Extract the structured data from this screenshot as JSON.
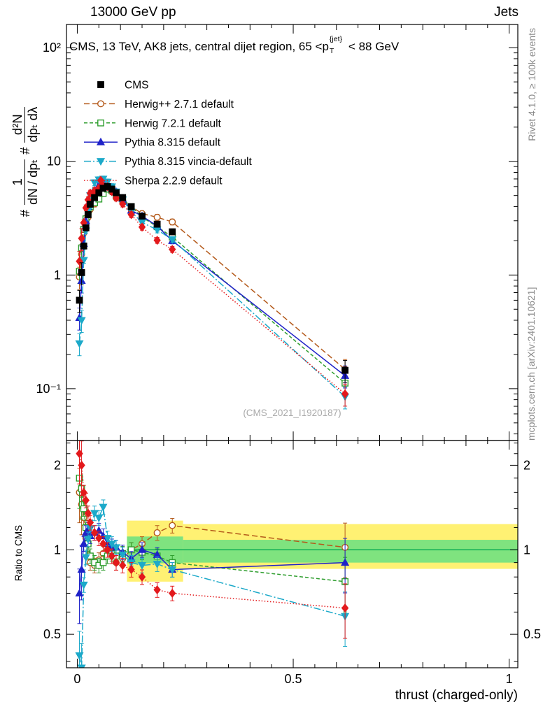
{
  "header": {
    "left": "13000 GeV pp",
    "right": "Jets"
  },
  "plot_title": {
    "pre": "CMS, 13 TeV, AK8 jets, central dijet region, 65 <p",
    "sup": "{jet}",
    "sub": "T",
    "post": "< 88 GeV"
  },
  "watermark": "(CMS_2021_I1920187)",
  "side_notes": {
    "top_right": "Rivet 4.1.0, ≥ 100k events",
    "bottom_right": "mcplots.cern.ch [arXiv:2401.10621]"
  },
  "axes": {
    "xlabel": "thrust (charged-only)",
    "ylabel_ratio": "Ratio to CMS",
    "ylabel_main": {
      "hash1": "#",
      "frac1_num": "1",
      "frac1_den": "dN / dpₜ",
      "hash2": "#",
      "frac2_num": "d²N",
      "frac2_den": "dpₜ dλ"
    },
    "x_ticks": [
      {
        "v": 0,
        "label": "0"
      },
      {
        "v": 0.5,
        "label": "0.5"
      },
      {
        "v": 1,
        "label": "1"
      }
    ],
    "y_ticks_main": [
      {
        "v": 100,
        "label": "10²"
      },
      {
        "v": 10,
        "label": "10"
      },
      {
        "v": 1,
        "label": "1"
      },
      {
        "v": 0.1,
        "label": "10⁻¹"
      }
    ],
    "y_ticks_ratio": [
      {
        "v": 2,
        "label": "2"
      },
      {
        "v": 1,
        "label": "1"
      },
      {
        "v": 0.5,
        "label": "0.5"
      }
    ]
  },
  "chart_data": {
    "type": "line",
    "title": "CMS, 13 TeV, AK8 jets, central dijet region, 65 < pT{jet} < 88 GeV",
    "xlabel": "thrust (charged-only)",
    "ylabel": "# 1/(dN/dpT) d²N/(dpT dλ)",
    "yscale": "log",
    "xlim": [
      -0.025,
      1.02
    ],
    "ylim_main": [
      0.035,
      160
    ],
    "ylim_ratio": [
      0.38,
      2.45
    ],
    "grid": false,
    "legend_position": "top-left-inside",
    "x": [
      0.005,
      0.01,
      0.015,
      0.02,
      0.025,
      0.03,
      0.04,
      0.05,
      0.06,
      0.07,
      0.08,
      0.09,
      0.105,
      0.125,
      0.15,
      0.185,
      0.22,
      0.62
    ],
    "series": [
      {
        "id": "cms",
        "name": "CMS",
        "color": "#000000",
        "marker": "square",
        "open": false,
        "line": "none",
        "values": [
          0.6,
          1.05,
          1.8,
          2.6,
          3.4,
          4.2,
          4.8,
          5.3,
          5.8,
          6.0,
          5.7,
          5.3,
          4.8,
          4.0,
          3.3,
          2.8,
          2.4,
          0.145
        ],
        "ratio": null
      },
      {
        "id": "herwigpp",
        "name": "Herwig++ 2.7.1 default",
        "color": "#b45a1b",
        "marker": "circle",
        "open": true,
        "line": "dashed",
        "values": [
          0.96,
          1.52,
          2.34,
          2.86,
          3.23,
          3.78,
          4.22,
          4.88,
          5.63,
          6.0,
          5.42,
          4.77,
          4.46,
          4.0,
          3.47,
          3.22,
          2.93,
          0.148
        ],
        "ratio": [
          1.6,
          1.45,
          1.3,
          1.1,
          0.95,
          0.9,
          0.88,
          0.92,
          0.97,
          1.0,
          0.95,
          0.9,
          0.93,
          1.0,
          1.05,
          1.15,
          1.22,
          1.02
        ]
      },
      {
        "id": "herwig7",
        "name": "Herwig 7.2.1 default",
        "color": "#2f9e2f",
        "marker": "square",
        "open": true,
        "line": "dashed2",
        "values": [
          1.08,
          1.73,
          2.52,
          3.12,
          3.57,
          3.99,
          4.32,
          4.66,
          5.22,
          5.7,
          5.53,
          5.04,
          4.66,
          4.0,
          3.23,
          2.66,
          2.16,
          0.112
        ],
        "ratio": [
          1.8,
          1.65,
          1.4,
          1.2,
          1.05,
          0.95,
          0.9,
          0.88,
          0.9,
          0.95,
          0.97,
          0.95,
          0.97,
          1.0,
          0.98,
          0.95,
          0.9,
          0.77
        ]
      },
      {
        "id": "pythia",
        "name": "Pythia 8.315 default",
        "color": "#1f22c8",
        "marker": "triangle-up",
        "open": false,
        "line": "solid",
        "values": [
          0.42,
          0.89,
          1.89,
          2.99,
          4.0,
          4.7,
          5.5,
          6.2,
          6.5,
          6.3,
          5.9,
          5.4,
          4.7,
          3.7,
          3.3,
          2.7,
          2.0,
          0.13
        ],
        "ratio": [
          0.7,
          0.85,
          1.05,
          1.15,
          1.18,
          1.12,
          1.15,
          1.17,
          1.12,
          1.05,
          1.03,
          1.02,
          0.98,
          0.93,
          1.0,
          0.96,
          0.85,
          0.9
        ]
      },
      {
        "id": "vincia",
        "name": "Pythia 8.315 vincia-default",
        "color": "#1ca9c9",
        "marker": "triangle-down",
        "open": false,
        "line": "dashdot",
        "values": [
          0.25,
          0.4,
          1.35,
          2.45,
          3.7,
          5.0,
          6.5,
          6.9,
          7.0,
          6.6,
          6.0,
          5.4,
          4.6,
          3.6,
          2.9,
          2.5,
          2.05,
          0.085
        ],
        "ratio": [
          0.42,
          0.38,
          0.75,
          0.94,
          1.09,
          1.19,
          1.35,
          1.3,
          1.42,
          1.1,
          1.05,
          1.02,
          0.96,
          0.9,
          0.88,
          0.89,
          0.85,
          0.58
        ]
      },
      {
        "id": "sherpa",
        "name": "Sherpa 2.2.9 default",
        "color": "#e3191c",
        "marker": "diamond",
        "open": false,
        "line": "dotted",
        "values": [
          1.32,
          2.1,
          2.88,
          3.9,
          4.59,
          5.25,
          5.52,
          5.83,
          6.09,
          6.0,
          5.42,
          4.77,
          4.22,
          3.4,
          2.64,
          2.02,
          1.68,
          0.09
        ],
        "ratio": [
          2.2,
          2.0,
          1.6,
          1.5,
          1.35,
          1.25,
          1.15,
          1.1,
          1.05,
          1.0,
          0.95,
          0.9,
          0.88,
          0.85,
          0.8,
          0.72,
          0.7,
          0.62
        ]
      }
    ],
    "rel_err_body": 0.06,
    "rel_err_edge": 0.22,
    "bands": [
      {
        "x0": 0.115,
        "x1": 0.245,
        "lo": 0.77,
        "hi": 1.27,
        "color": "#fff173"
      },
      {
        "x0": 0.245,
        "x1": 1.02,
        "lo": 0.855,
        "hi": 1.235,
        "color": "#fff173"
      },
      {
        "x0": 0.115,
        "x1": 0.245,
        "lo": 0.895,
        "hi": 1.115,
        "color": "#7fe37f"
      },
      {
        "x0": 0.245,
        "x1": 1.02,
        "lo": 0.9,
        "hi": 1.085,
        "color": "#7fe37f"
      }
    ],
    "ref_line": {
      "x0": 0.115,
      "x1": 1.02,
      "y": 1.0,
      "color": "#00a74f"
    }
  }
}
